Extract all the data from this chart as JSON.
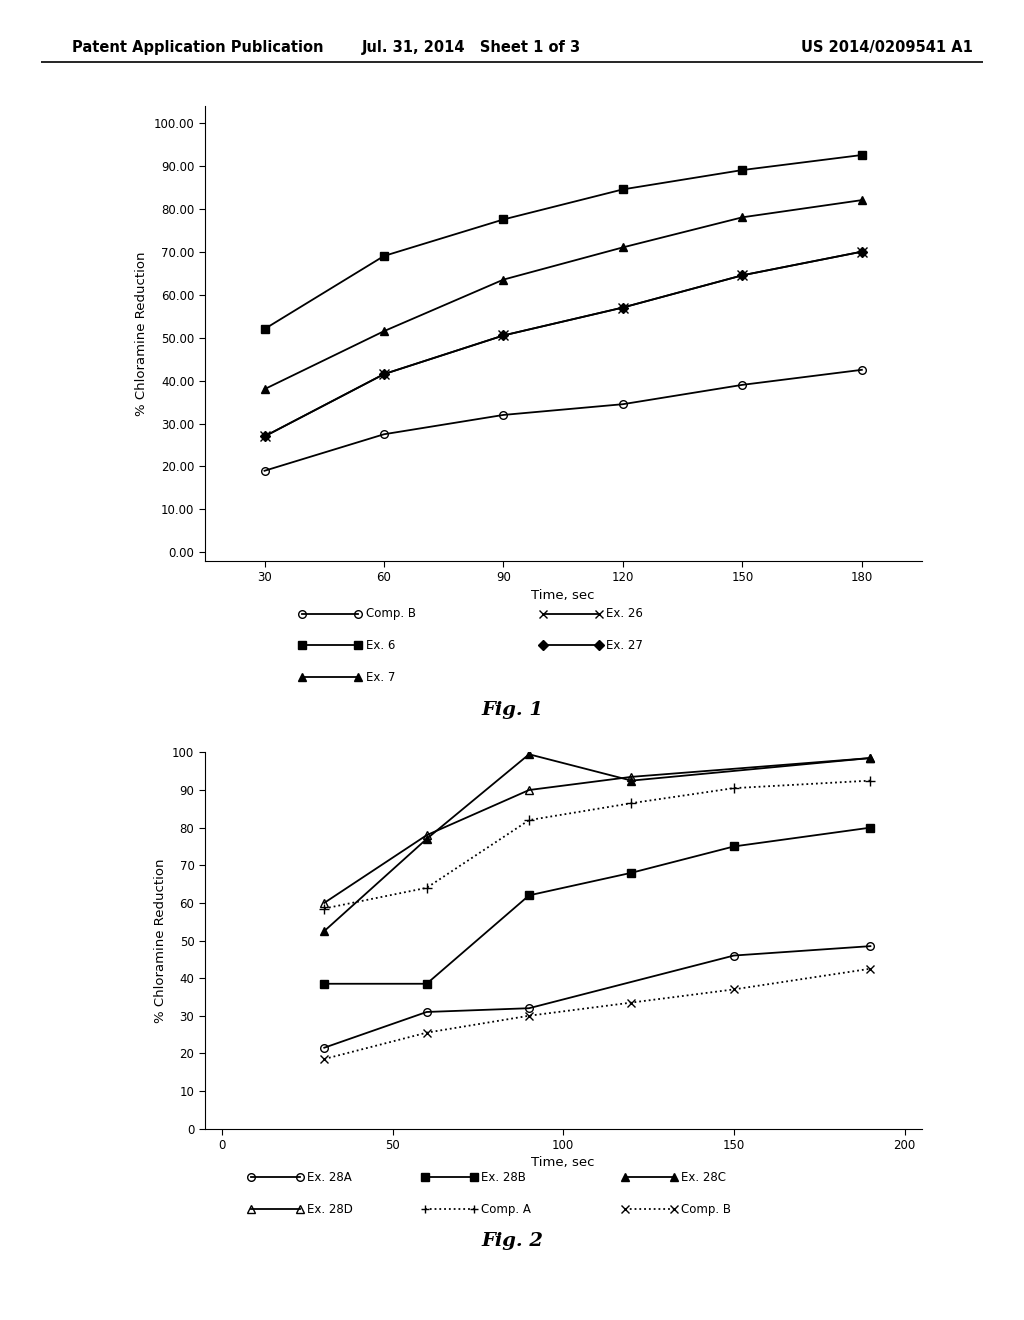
{
  "fig1": {
    "xlabel": "Time, sec",
    "ylabel": "% Chloramine Reduction",
    "xlim": [
      15,
      195
    ],
    "ylim": [
      -2,
      104
    ],
    "xticks": [
      30,
      60,
      90,
      120,
      150,
      180
    ],
    "yticks": [
      0.0,
      10.0,
      20.0,
      30.0,
      40.0,
      50.0,
      60.0,
      70.0,
      80.0,
      90.0,
      100.0
    ],
    "ytick_labels": [
      "0.00",
      "10.00",
      "20.00",
      "30.00",
      "40.00",
      "50.00",
      "60.00",
      "70.00",
      "80.00",
      "90.00",
      "100.00"
    ],
    "series": {
      "Comp. B": {
        "x": [
          30,
          60,
          90,
          120,
          150,
          180
        ],
        "y": [
          19.0,
          27.5,
          32.0,
          34.5,
          39.0,
          42.5
        ],
        "marker": "o",
        "fillstyle": "none"
      },
      "Ex. 26": {
        "x": [
          30,
          60,
          90,
          120,
          150,
          180
        ],
        "y": [
          27.0,
          41.5,
          50.5,
          57.0,
          64.5,
          70.0
        ],
        "marker": "x",
        "fillstyle": "full"
      },
      "Ex. 6": {
        "x": [
          30,
          60,
          90,
          120,
          150,
          180
        ],
        "y": [
          52.0,
          69.0,
          77.5,
          84.5,
          89.0,
          92.5
        ],
        "marker": "s",
        "fillstyle": "full"
      },
      "Ex. 27": {
        "x": [
          30,
          60,
          90,
          120,
          150,
          180
        ],
        "y": [
          27.0,
          41.5,
          50.5,
          57.0,
          64.5,
          70.0
        ],
        "marker": "D",
        "fillstyle": "full"
      },
      "Ex. 7": {
        "x": [
          30,
          60,
          90,
          120,
          150,
          180
        ],
        "y": [
          38.0,
          51.5,
          63.5,
          71.0,
          78.0,
          82.0
        ],
        "marker": "^",
        "fillstyle": "full"
      }
    },
    "legend_order": [
      "Comp. B",
      "Ex. 26",
      "Ex. 6",
      "Ex. 27",
      "Ex. 7"
    ]
  },
  "fig2": {
    "xlabel": "Time, sec",
    "ylabel": "% Chloramine Reduction",
    "xlim": [
      -5,
      205
    ],
    "ylim": [
      0,
      100
    ],
    "xticks": [
      0,
      50,
      100,
      150,
      200
    ],
    "yticks": [
      0,
      10,
      20,
      30,
      40,
      50,
      60,
      70,
      80,
      90,
      100
    ],
    "ytick_labels": [
      "0",
      "10",
      "20",
      "30",
      "40",
      "50",
      "60",
      "70",
      "80",
      "90",
      "100"
    ],
    "series": {
      "Ex. 28A": {
        "x": [
          30,
          60,
          90,
          150,
          190
        ],
        "y": [
          21.5,
          31.0,
          32.0,
          46.0,
          48.5
        ],
        "marker": "o",
        "fillstyle": "none",
        "dotted": false
      },
      "Ex. 28B": {
        "x": [
          30,
          60,
          90,
          120,
          150,
          190
        ],
        "y": [
          38.5,
          38.5,
          62.0,
          68.0,
          75.0,
          80.0
        ],
        "marker": "s",
        "fillstyle": "full",
        "dotted": false
      },
      "Ex. 28C": {
        "x": [
          30,
          60,
          90,
          120,
          190
        ],
        "y": [
          52.5,
          77.0,
          99.5,
          92.5,
          98.5
        ],
        "marker": "^",
        "fillstyle": "full",
        "dotted": false
      },
      "Ex. 28D": {
        "x": [
          30,
          60,
          90,
          120,
          190
        ],
        "y": [
          60.0,
          78.0,
          90.0,
          93.5,
          98.5
        ],
        "marker": "^",
        "fillstyle": "none",
        "dotted": false
      },
      "Comp. A": {
        "x": [
          30,
          60,
          90,
          120,
          150,
          190
        ],
        "y": [
          58.5,
          64.0,
          82.0,
          86.5,
          90.5,
          92.5
        ],
        "marker": "+",
        "fillstyle": "full",
        "dotted": true
      },
      "Comp. B": {
        "x": [
          30,
          60,
          90,
          120,
          150,
          190
        ],
        "y": [
          18.5,
          25.5,
          30.0,
          33.5,
          37.0,
          42.5
        ],
        "marker": "x",
        "fillstyle": "full",
        "dotted": true
      }
    },
    "legend_order": [
      "Ex. 28A",
      "Ex. 28B",
      "Ex. 28C",
      "Ex. 28D",
      "Comp. A",
      "Comp. B"
    ]
  },
  "header": {
    "left": "Patent Application Publication",
    "center": "Jul. 31, 2014   Sheet 1 of 3",
    "right": "US 2014/0209541 A1"
  }
}
